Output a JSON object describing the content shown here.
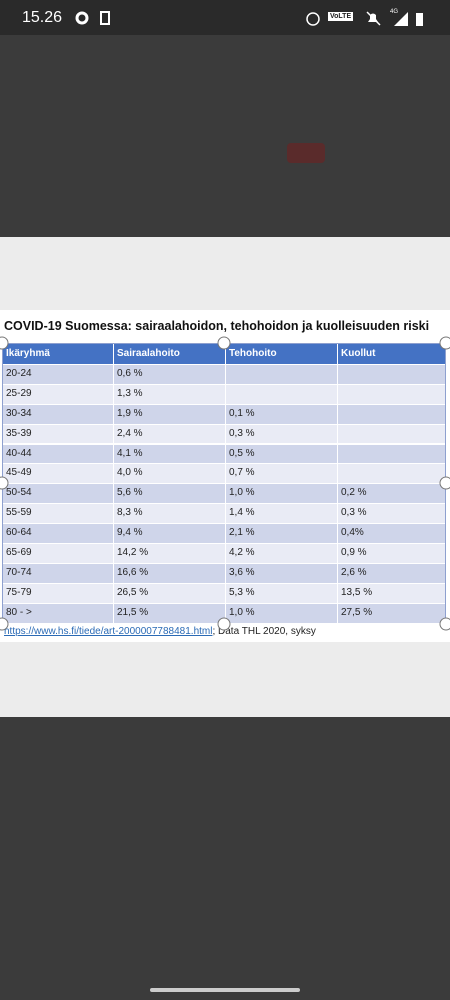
{
  "status_bar": {
    "time": "15.26",
    "network": "VoLTE",
    "signal": "4G"
  },
  "table": {
    "title": "COVID-19 Suomessa: sairaalahoidon, tehohoidon ja kuolleisuuden riski",
    "columns": [
      "Ikäryhmä",
      "Sairaalahoito",
      "Tehohoito",
      "Kuollut"
    ],
    "rows": [
      [
        "20-24",
        "0,6 %",
        null,
        null
      ],
      [
        "25-29",
        "1,3 %",
        null,
        null
      ],
      [
        "30-34",
        "1,9 %",
        "0,1 %",
        null
      ],
      [
        "35-39",
        "2,4 %",
        "0,3 %",
        null
      ],
      [
        "40-44",
        "4,1 %",
        "0,5 %",
        null
      ],
      [
        "45-49",
        "4,0 %",
        "0,7 %",
        null
      ],
      [
        "50-54",
        "5,6 %",
        "1,0 %",
        "0,2 %"
      ],
      [
        "55-59",
        "8,3 %",
        "1,4 %",
        "0,3 %"
      ],
      [
        "60-64",
        "9,4 %",
        "2,1 %",
        "0,4%"
      ],
      [
        "65-69",
        "14,2 %",
        "4,2 %",
        "0,9 %"
      ],
      [
        "70-74",
        "16,6 %",
        "3,6 %",
        "2,6 %"
      ],
      [
        "75-79",
        "26,5 %",
        "5,3 %",
        "13,5 %"
      ],
      [
        "80 - >",
        "21,5 %",
        "1,0 %",
        "27,5 %"
      ]
    ],
    "footer": {
      "link": "https://www.hs.fi/tiede/art-2000007788481.html",
      "source": "; Data THL 2020, syksy"
    }
  }
}
